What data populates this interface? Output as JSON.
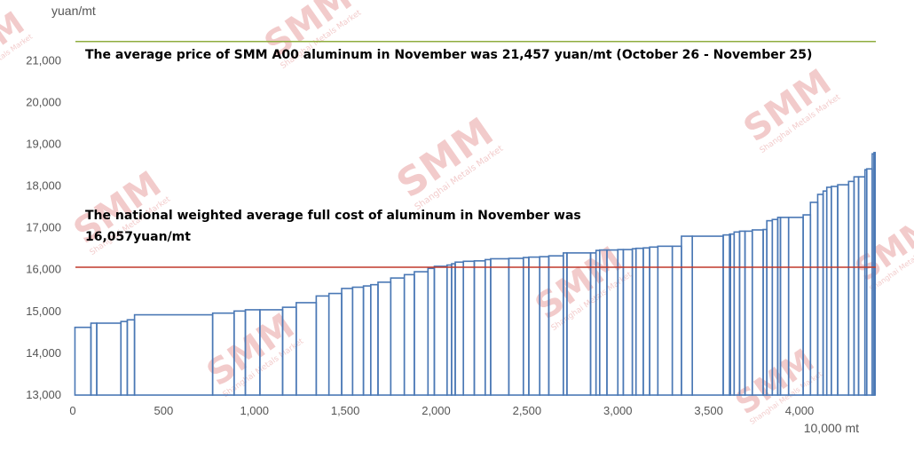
{
  "chart_data": {
    "type": "area",
    "ylabel": "yuan/mt",
    "xlabel": "10,000 mt",
    "xlim": [
      0,
      4420
    ],
    "ylim": [
      13000,
      21600
    ],
    "xticks": [
      0,
      500,
      1000,
      1500,
      2000,
      2500,
      3000,
      3500,
      4000
    ],
    "xtick_labels": [
      "0",
      "500",
      "1,000",
      "1,500",
      "2,000",
      "2,500",
      "3,000",
      "3,500",
      "4,000"
    ],
    "yticks": [
      13000,
      14000,
      15000,
      16000,
      17000,
      18000,
      19000,
      20000,
      21000
    ],
    "ytick_labels": [
      "13,000",
      "14,000",
      "15,000",
      "16,000",
      "17,000",
      "18,000",
      "19,000",
      "20,000",
      "21,000"
    ],
    "grid": false,
    "legend": "none",
    "series": [
      {
        "type": "cost-curve-steps",
        "color": "#4a78b5",
        "x": [
          0,
          12,
          100,
          132,
          265,
          300,
          340,
          770,
          888,
          950,
          1030,
          1155,
          1230,
          1340,
          1410,
          1480,
          1540,
          1600,
          1640,
          1680,
          1750,
          1825,
          1880,
          1955,
          1990,
          2060,
          2085,
          2105,
          2150,
          2210,
          2270,
          2300,
          2400,
          2480,
          2510,
          2570,
          2620,
          2700,
          2720,
          2850,
          2880,
          2900,
          2940,
          3000,
          3030,
          3080,
          3100,
          3140,
          3175,
          3220,
          3300,
          3350,
          3410,
          3580,
          3615,
          3620,
          3640,
          3670,
          3700,
          3740,
          3800,
          3820,
          3850,
          3880,
          3895,
          3940,
          4020,
          4060,
          4100,
          4130,
          4150,
          4175,
          4210,
          4270,
          4300,
          4325,
          4360,
          4370,
          4400,
          4410,
          4416
        ],
        "y": [
          13000,
          14620,
          14720,
          14720,
          14760,
          14800,
          14920,
          14960,
          15010,
          15040,
          15040,
          15100,
          15210,
          15370,
          15430,
          15550,
          15580,
          15610,
          15640,
          15700,
          15800,
          15880,
          15950,
          16030,
          16080,
          16110,
          16140,
          16180,
          16200,
          16210,
          16240,
          16260,
          16270,
          16290,
          16300,
          16310,
          16330,
          16400,
          16400,
          16400,
          16460,
          16470,
          16470,
          16480,
          16480,
          16500,
          16510,
          16520,
          16540,
          16560,
          16560,
          16800,
          16800,
          16830,
          16850,
          16850,
          16900,
          16920,
          16920,
          16950,
          16960,
          17170,
          17200,
          17250,
          17250,
          17250,
          17310,
          17610,
          17800,
          17880,
          17970,
          17990,
          18030,
          18110,
          18220,
          18220,
          18390,
          18410,
          18770,
          18800,
          13000
        ]
      }
    ],
    "reference_lines": [
      {
        "y": 21457,
        "color": "#8fad3f"
      },
      {
        "y": 16057,
        "color": "#c0392b"
      }
    ],
    "annotations": [
      {
        "lines": [
          "The average price of SMM A00 aluminum in November was 21,457 yuan/mt (October 26 - November 25)"
        ]
      },
      {
        "lines": [
          "The national weighted average full cost of aluminum in November was",
          "16,057yuan/mt"
        ]
      }
    ]
  },
  "watermark": {
    "brand": "SMM",
    "subtitle": "Shanghai Metals Market"
  }
}
